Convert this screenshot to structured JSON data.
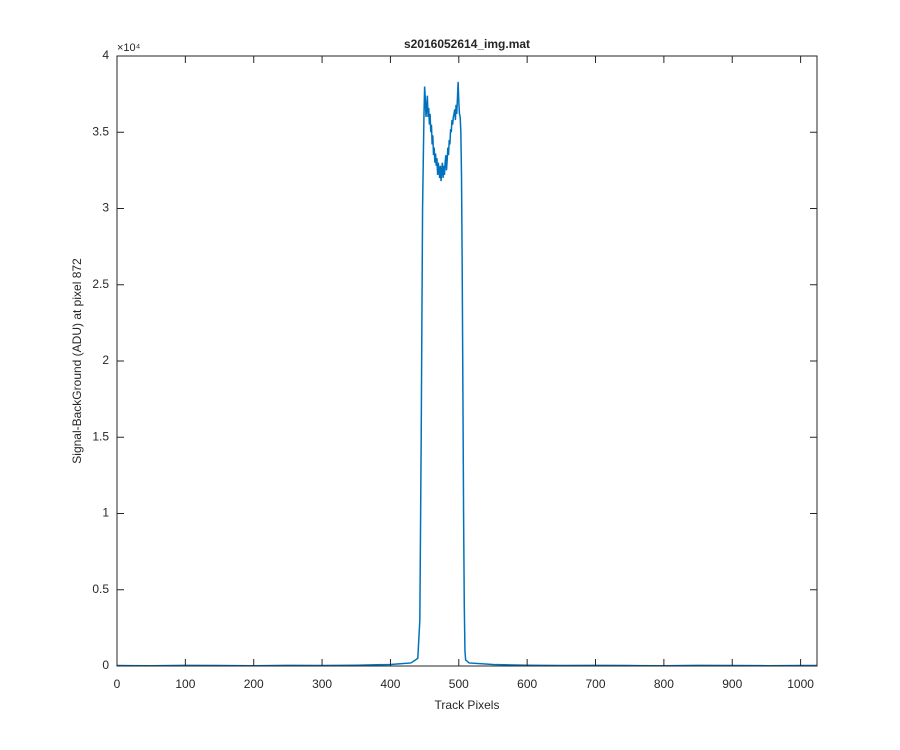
{
  "chart_data": {
    "type": "line",
    "title": "s2016052614_img.mat",
    "x_label": "Track Pixels",
    "y_label": "Signal-BackGround (ADU) at pixel 872",
    "y_exponent_label": "×10⁴",
    "color": "#0072bd",
    "x": [
      0,
      50,
      100,
      150,
      200,
      250,
      300,
      350,
      400,
      430,
      440,
      443,
      445,
      447,
      449,
      450,
      451,
      452,
      453,
      454,
      455,
      456,
      457,
      458,
      459,
      460,
      461,
      462,
      463,
      464,
      465,
      466,
      467,
      468,
      469,
      470,
      471,
      472,
      473,
      474,
      475,
      476,
      477,
      478,
      479,
      480,
      481,
      482,
      483,
      484,
      485,
      486,
      487,
      488,
      489,
      490,
      491,
      492,
      493,
      494,
      495,
      496,
      497,
      498,
      499,
      500,
      501,
      502,
      503,
      504,
      505,
      506,
      507,
      508,
      509,
      510,
      515,
      550,
      600,
      650,
      700,
      750,
      800,
      850,
      900,
      950,
      1000,
      1024
    ],
    "values": [
      0.003,
      0.002,
      0.004,
      0.003,
      0.002,
      0.004,
      0.003,
      0.005,
      0.01,
      0.02,
      0.05,
      0.3,
      1.5,
      3.0,
      3.6,
      3.8,
      3.72,
      3.6,
      3.66,
      3.74,
      3.6,
      3.66,
      3.55,
      3.62,
      3.5,
      3.55,
      3.42,
      3.48,
      3.35,
      3.4,
      3.3,
      3.36,
      3.28,
      3.33,
      3.22,
      3.3,
      3.25,
      3.2,
      3.28,
      3.18,
      3.25,
      3.3,
      3.2,
      3.28,
      3.22,
      3.3,
      3.35,
      3.25,
      3.32,
      3.4,
      3.35,
      3.45,
      3.42,
      3.52,
      3.5,
      3.58,
      3.55,
      3.6,
      3.62,
      3.65,
      3.58,
      3.68,
      3.62,
      3.72,
      3.83,
      3.7,
      3.62,
      3.6,
      3.5,
      3.2,
      2.6,
      1.8,
      1.0,
      0.4,
      0.1,
      0.04,
      0.02,
      0.01,
      0.005,
      0.003,
      0.004,
      0.003,
      0.002,
      0.004,
      0.003,
      0.002,
      0.003,
      0.003
    ],
    "xlim": [
      0,
      1024
    ],
    "xticks": [
      0,
      100,
      200,
      300,
      400,
      500,
      600,
      700,
      800,
      900,
      1000
    ],
    "ylim": [
      0,
      4
    ],
    "yticks": [
      0,
      0.5,
      1,
      1.5,
      2,
      2.5,
      3,
      3.5,
      4
    ]
  }
}
